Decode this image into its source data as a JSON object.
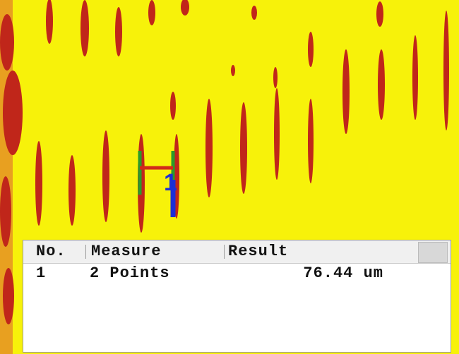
{
  "measurement_marker": {
    "label": "1"
  },
  "table": {
    "columns": [
      "No.",
      "Measure",
      "Result"
    ],
    "rows": [
      [
        "1",
        "2 Points",
        "76.44 um"
      ]
    ]
  }
}
